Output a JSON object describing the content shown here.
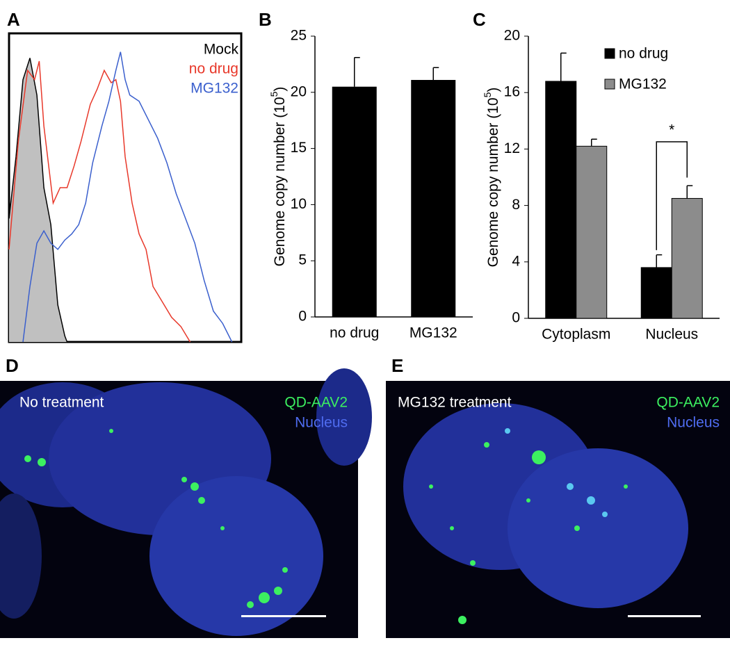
{
  "chart_data": [
    {
      "panel": "A",
      "type": "line",
      "xlim": [
        0,
        100
      ],
      "ylim": [
        0,
        100
      ],
      "series": [
        {
          "name": "Mock",
          "color": "#000000",
          "fill": "#c0c0c0",
          "x": [
            0,
            3,
            6,
            9,
            12,
            15,
            18,
            21,
            24,
            25
          ],
          "values": [
            40,
            60,
            85,
            92,
            80,
            50,
            38,
            12,
            2,
            0
          ]
        },
        {
          "name": "no drug",
          "color": "#e8382a",
          "x": [
            0,
            4,
            8,
            11,
            13,
            15,
            19,
            22,
            25,
            28,
            31,
            35,
            38,
            41,
            44,
            46,
            48,
            50,
            53,
            56,
            59,
            62,
            66,
            70,
            74,
            78
          ],
          "values": [
            30,
            65,
            88,
            85,
            91,
            70,
            45,
            50,
            50,
            57,
            65,
            77,
            82,
            88,
            84,
            85,
            78,
            60,
            45,
            35,
            30,
            18,
            13,
            8,
            5,
            0
          ]
        },
        {
          "name": "MG132",
          "color": "#3a5fcd",
          "x": [
            6,
            9,
            12,
            15,
            18,
            21,
            24,
            27,
            30,
            33,
            36,
            40,
            43,
            46,
            48,
            50,
            52,
            56,
            60,
            64,
            68,
            72,
            76,
            80,
            84,
            88,
            92,
            96
          ],
          "values": [
            0,
            18,
            32,
            36,
            32,
            30,
            33,
            35,
            38,
            45,
            58,
            70,
            78,
            88,
            94,
            85,
            80,
            78,
            72,
            66,
            58,
            48,
            40,
            32,
            20,
            10,
            6,
            0
          ]
        }
      ]
    },
    {
      "panel": "B",
      "type": "bar",
      "categories": [
        "no drug",
        "MG132"
      ],
      "values": [
        20.5,
        21.1
      ],
      "errors": [
        2.6,
        1.1
      ],
      "color": "#000000",
      "ylim": [
        0,
        25
      ],
      "yticks": [
        0,
        5,
        10,
        15,
        20,
        25
      ],
      "ylabel_parts": [
        "Genome copy number (10",
        "5",
        ")"
      ]
    },
    {
      "panel": "C",
      "type": "grouped-bar",
      "categories": [
        "Cytoplasm",
        "Nucleus"
      ],
      "series": [
        {
          "name": "no drug",
          "color": "#000000",
          "values": [
            16.8,
            3.6
          ],
          "errors": [
            2.0,
            0.9
          ]
        },
        {
          "name": "MG132",
          "color": "#8c8c8c",
          "values": [
            12.2,
            8.5
          ],
          "errors": [
            0.5,
            0.9
          ]
        }
      ],
      "ylim": [
        0,
        20
      ],
      "yticks": [
        0,
        4,
        8,
        12,
        16,
        20
      ],
      "ylabel_parts": [
        "Genome copy number (10",
        "5",
        ")"
      ],
      "annotation": "*"
    }
  ],
  "images": [
    {
      "panel": "D",
      "caption": "No treatment",
      "channels": [
        "QD-AAV2",
        "Nucleus"
      ]
    },
    {
      "panel": "E",
      "caption": "MG132 treatment",
      "channels": [
        "QD-AAV2",
        "Nucleus"
      ]
    }
  ]
}
